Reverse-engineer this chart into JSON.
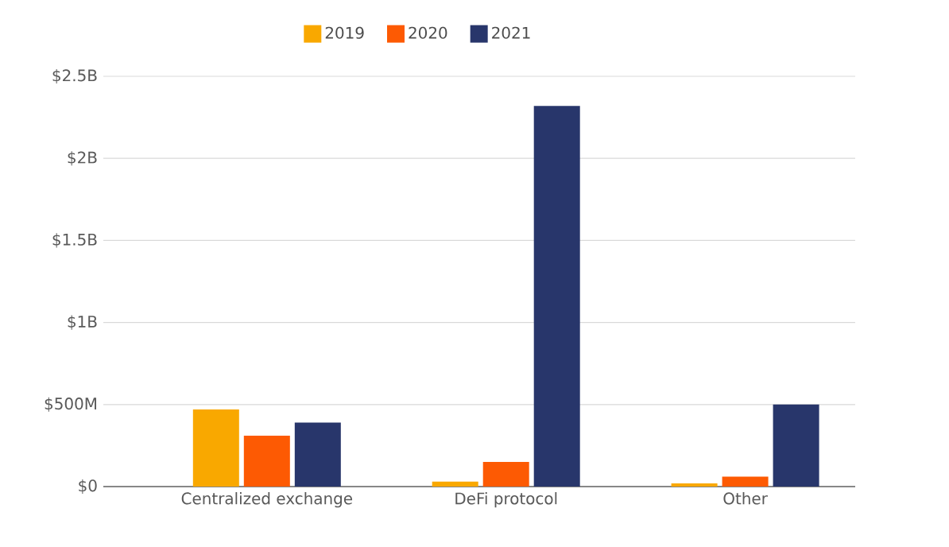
{
  "chart_data": {
    "type": "bar",
    "categories": [
      "Centralized exchange",
      "DeFi protocol",
      "Other"
    ],
    "series": [
      {
        "name": "2019",
        "color": "#f9a800",
        "values": [
          470000000,
          30000000,
          20000000
        ]
      },
      {
        "name": "2020",
        "color": "#fd5a03",
        "values": [
          310000000,
          150000000,
          60000000
        ]
      },
      {
        "name": "2021",
        "color": "#28366b",
        "values": [
          390000000,
          2320000000,
          500000000
        ]
      }
    ],
    "ylim": [
      0,
      2500000000
    ],
    "yticks": [
      {
        "value": 0,
        "label": "$0"
      },
      {
        "value": 500000000,
        "label": "$500M"
      },
      {
        "value": 1000000000,
        "label": "$1B"
      },
      {
        "value": 1500000000,
        "label": "$1.5B"
      },
      {
        "value": 2000000000,
        "label": "$2B"
      },
      {
        "value": 2500000000,
        "label": "$2.5B"
      }
    ],
    "grid": "y",
    "legend": "top"
  }
}
